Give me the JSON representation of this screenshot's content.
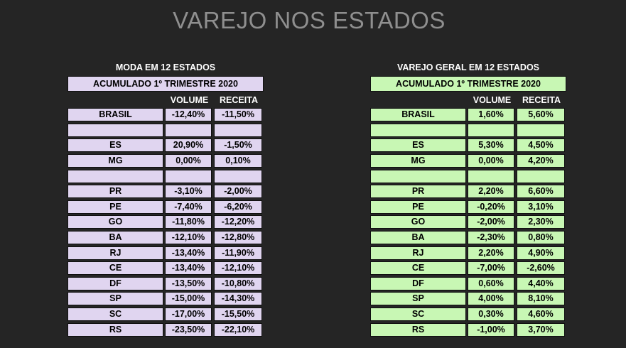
{
  "title": "VAREJO NOS ESTADOS",
  "column_headers": {
    "volume": "VOLUME",
    "receita": "RECEITA"
  },
  "colors": {
    "background": "#252525",
    "moda_fill": "#e0d5f0",
    "varejo_fill": "#c8f7b4",
    "title": "#8f8f8f"
  },
  "moda": {
    "heading": "MODA EM 12 ESTADOS",
    "subheading": "ACUMULADO 1º TRIMESTRE 2020",
    "rows": [
      {
        "state": "BRASIL",
        "volume": "-12,40%",
        "receita": "-11,50%"
      },
      {
        "state": "",
        "volume": "",
        "receita": ""
      },
      {
        "state": "ES",
        "volume": "20,90%",
        "receita": "-1,50%"
      },
      {
        "state": "MG",
        "volume": "0,00%",
        "receita": "0,10%"
      },
      {
        "state": "",
        "volume": "",
        "receita": ""
      },
      {
        "state": "PR",
        "volume": "-3,10%",
        "receita": "-2,00%"
      },
      {
        "state": "PE",
        "volume": "-7,40%",
        "receita": "-6,20%"
      },
      {
        "state": "GO",
        "volume": "-11,80%",
        "receita": "-12,20%"
      },
      {
        "state": "BA",
        "volume": "-12,10%",
        "receita": "-12,80%"
      },
      {
        "state": "RJ",
        "volume": "-13,40%",
        "receita": "-11,90%"
      },
      {
        "state": "CE",
        "volume": "-13,40%",
        "receita": "-12,10%"
      },
      {
        "state": "DF",
        "volume": "-13,50%",
        "receita": "-10,80%"
      },
      {
        "state": "SP",
        "volume": "-15,00%",
        "receita": "-14,30%"
      },
      {
        "state": "SC",
        "volume": "-17,00%",
        "receita": "-15,50%"
      },
      {
        "state": "RS",
        "volume": "-23,50%",
        "receita": "-22,10%"
      }
    ]
  },
  "varejo": {
    "heading": "VAREJO GERAL EM 12 ESTADOS",
    "subheading": "ACUMULADO 1º TRIMESTRE 2020",
    "rows": [
      {
        "state": "BRASIL",
        "volume": "1,60%",
        "receita": "5,60%"
      },
      {
        "state": "",
        "volume": "",
        "receita": ""
      },
      {
        "state": "ES",
        "volume": "5,30%",
        "receita": "4,50%"
      },
      {
        "state": "MG",
        "volume": "0,00%",
        "receita": "4,20%"
      },
      {
        "state": "",
        "volume": "",
        "receita": ""
      },
      {
        "state": "PR",
        "volume": "2,20%",
        "receita": "6,60%"
      },
      {
        "state": "PE",
        "volume": "-0,20%",
        "receita": "3,10%"
      },
      {
        "state": "GO",
        "volume": "-2,00%",
        "receita": "2,30%"
      },
      {
        "state": "BA",
        "volume": "-2,30%",
        "receita": "0,80%"
      },
      {
        "state": "RJ",
        "volume": "2,20%",
        "receita": "4,90%"
      },
      {
        "state": "CE",
        "volume": "-7,00%",
        "receita": "-2,60%"
      },
      {
        "state": "DF",
        "volume": "0,60%",
        "receita": "4,40%"
      },
      {
        "state": "SP",
        "volume": "4,00%",
        "receita": "8,10%"
      },
      {
        "state": "SC",
        "volume": "0,30%",
        "receita": "4,60%"
      },
      {
        "state": "RS",
        "volume": "-1,00%",
        "receita": "3,70%"
      }
    ]
  }
}
